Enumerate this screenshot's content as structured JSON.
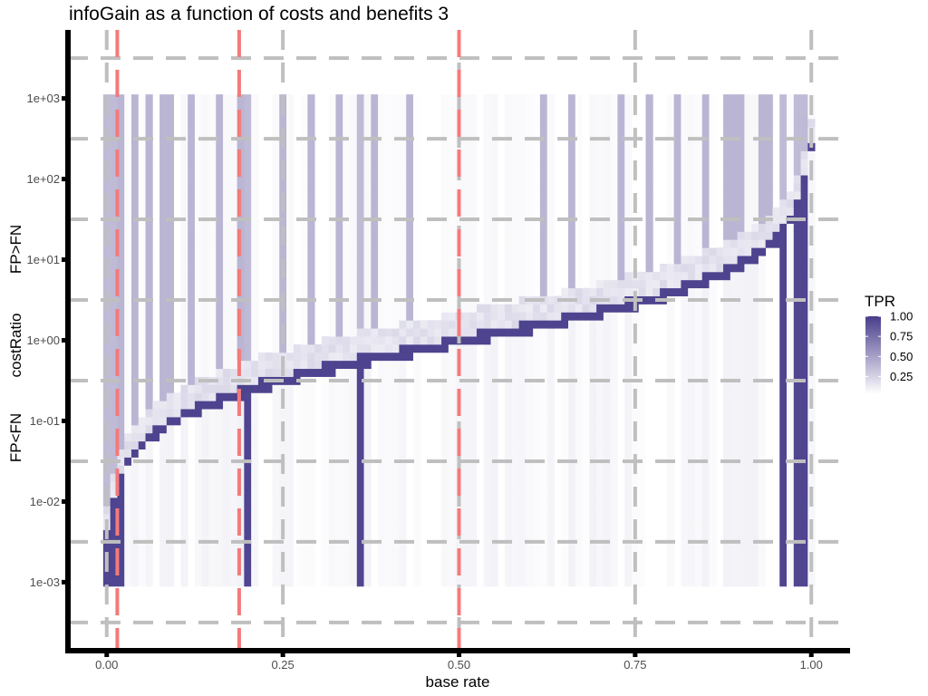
{
  "chart_data": {
    "type": "heatmap",
    "title": "infoGain as a function of costs and benefits 3",
    "xlabel": "base rate",
    "ylabel": "costRatio",
    "ylabel_upper": "FP>FN",
    "ylabel_lower": "FP<FN",
    "x_ticks": [
      "0.00",
      "0.25",
      "0.50",
      "0.75",
      "1.00"
    ],
    "x_tick_values": [
      0,
      0.25,
      0.5,
      0.75,
      1.0
    ],
    "y_ticks": [
      "1e-03",
      "1e-02",
      "1e-01",
      "1e+00",
      "1e+01",
      "1e+02",
      "1e+03"
    ],
    "y_tick_values": [
      -3,
      -2,
      -1,
      0,
      1,
      2,
      3
    ],
    "y_scale": "log10",
    "xlim": [
      -0.055,
      1.055
    ],
    "ylim_log10": [
      -3.85,
      3.85
    ],
    "grid": true,
    "grid_style": "dashed",
    "fill_label": "TPR",
    "legend": {
      "title": "TPR",
      "position": "right",
      "breaks": [
        "1.00",
        "0.75",
        "0.50",
        "0.25"
      ],
      "break_values": [
        1.0,
        0.75,
        0.5,
        0.25
      ]
    },
    "color_low": "#ffffff",
    "color_high": "#483d8b",
    "reference_lines_x": [
      0.015,
      0.188,
      0.5
    ],
    "reference_line_color": "#f47a7a",
    "grid_color": "#bfbfbf",
    "x_range_data": [
      0.0,
      1.0
    ],
    "y_range_log10": [
      -3,
      3
    ],
    "grid_resolution": {
      "x_step": 0.01,
      "y_log_step": 0.1
    },
    "boundary": "costRatio = p / (1 - p)",
    "full_tpr_columns": [
      0.0,
      0.01,
      0.02,
      0.2,
      0.36,
      0.96,
      0.98,
      0.99
    ],
    "partial_tpr_columns": [
      0.02,
      0.04,
      0.06,
      0.08,
      0.09,
      0.12,
      0.16,
      0.19,
      0.25,
      0.29,
      0.33,
      0.38,
      0.43,
      0.62,
      0.66,
      0.73,
      0.77,
      0.81,
      0.85,
      0.88,
      0.89,
      0.9,
      0.93,
      0.94
    ]
  }
}
